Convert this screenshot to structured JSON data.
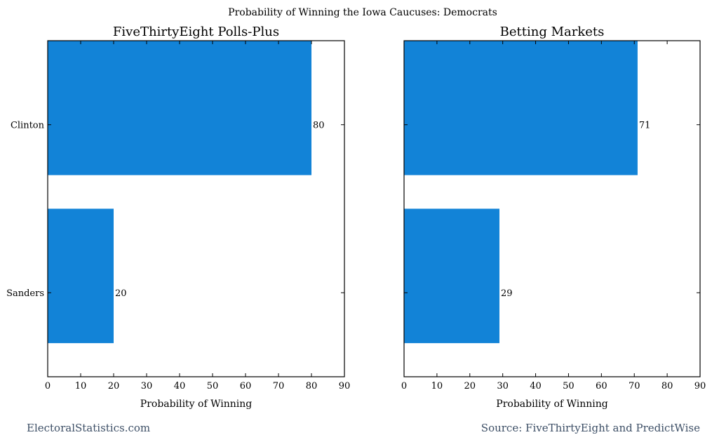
{
  "figure": {
    "suptitle": "Probability of Winning the Iowa Caucuses: Democrats",
    "footer_left": "ElectoralStatistics.com",
    "footer_right": "Source: FiveThirtyEight and PredictWise",
    "bar_color": "#1283d7"
  },
  "chart_data": [
    {
      "type": "bar",
      "orientation": "horizontal",
      "title": "FiveThirtyEight Polls-Plus",
      "xlabel": "Probability of Winning",
      "ylabel": "",
      "categories": [
        "Clinton",
        "Sanders"
      ],
      "values": [
        80,
        20
      ],
      "data_labels": [
        "80",
        "20"
      ],
      "xlim": [
        0,
        90
      ],
      "xticks": [
        0,
        10,
        20,
        30,
        40,
        50,
        60,
        70,
        80,
        90
      ],
      "show_category_labels": true,
      "grid": false,
      "legend": "none"
    },
    {
      "type": "bar",
      "orientation": "horizontal",
      "title": "Betting Markets",
      "xlabel": "Probability of Winning",
      "ylabel": "",
      "categories": [
        "Clinton",
        "Sanders"
      ],
      "values": [
        71,
        29
      ],
      "data_labels": [
        "71",
        "29"
      ],
      "xlim": [
        0,
        90
      ],
      "xticks": [
        0,
        10,
        20,
        30,
        40,
        50,
        60,
        70,
        80,
        90
      ],
      "show_category_labels": false,
      "grid": false,
      "legend": "none"
    }
  ]
}
